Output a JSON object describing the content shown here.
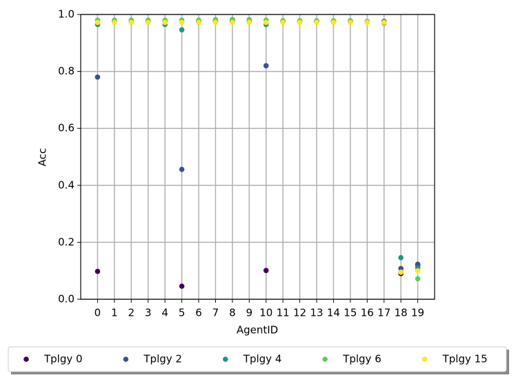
{
  "chart_data": {
    "type": "scatter",
    "x_label": "AgentID",
    "y_label": "Acc",
    "x": [
      0,
      1,
      2,
      3,
      4,
      5,
      6,
      7,
      8,
      9,
      10,
      11,
      12,
      13,
      14,
      15,
      16,
      17,
      18,
      19
    ],
    "xlim": [
      -1,
      20
    ],
    "xticks": [
      0,
      1,
      2,
      3,
      4,
      5,
      6,
      7,
      8,
      9,
      10,
      11,
      12,
      13,
      14,
      15,
      16,
      17,
      18,
      19
    ],
    "ylim": [
      0,
      1
    ],
    "yticks": [
      {
        "value": 0,
        "label": "0.0"
      },
      0.2,
      0.4,
      0.6,
      0.8,
      {
        "value": 1,
        "label": "1.0"
      }
    ],
    "grid": true,
    "legend": "bottom",
    "series": [
      {
        "name": "Tplgy 0",
        "color": "#440154",
        "values": [
          0.098,
          0.975,
          0.975,
          0.975,
          0.975,
          0.046,
          0.975,
          0.975,
          0.975,
          0.975,
          0.101,
          0.975,
          0.975,
          0.975,
          0.975,
          0.975,
          0.975,
          0.975,
          0.09,
          0.12
        ]
      },
      {
        "name": "Tplgy 2",
        "color": "#3b528b",
        "values": [
          0.78,
          0.976,
          0.976,
          0.976,
          0.976,
          0.456,
          0.976,
          0.978,
          0.978,
          0.978,
          0.82,
          0.976,
          0.976,
          0.976,
          0.976,
          0.976,
          0.975,
          0.975,
          0.108,
          0.123
        ]
      },
      {
        "name": "Tplgy 4",
        "color": "#21918c",
        "values": [
          0.965,
          0.976,
          0.976,
          0.976,
          0.965,
          0.946,
          0.972,
          0.978,
          0.98,
          0.978,
          0.965,
          0.976,
          0.976,
          0.976,
          0.976,
          0.976,
          0.975,
          0.97,
          0.146,
          0.11
        ]
      },
      {
        "name": "Tplgy 6",
        "color": "#5ec962",
        "values": [
          0.98,
          0.98,
          0.98,
          0.98,
          0.98,
          0.98,
          0.98,
          0.982,
          0.983,
          0.982,
          0.98,
          0.978,
          0.978,
          0.978,
          0.978,
          0.978,
          0.975,
          0.972,
          0.095,
          0.072
        ]
      },
      {
        "name": "Tplgy 15",
        "color": "#fde725",
        "values": [
          0.972,
          0.972,
          0.972,
          0.972,
          0.972,
          0.972,
          0.972,
          0.972,
          0.972,
          0.972,
          0.972,
          0.972,
          0.972,
          0.972,
          0.972,
          0.972,
          0.972,
          0.972,
          0.095,
          0.1
        ]
      }
    ]
  }
}
